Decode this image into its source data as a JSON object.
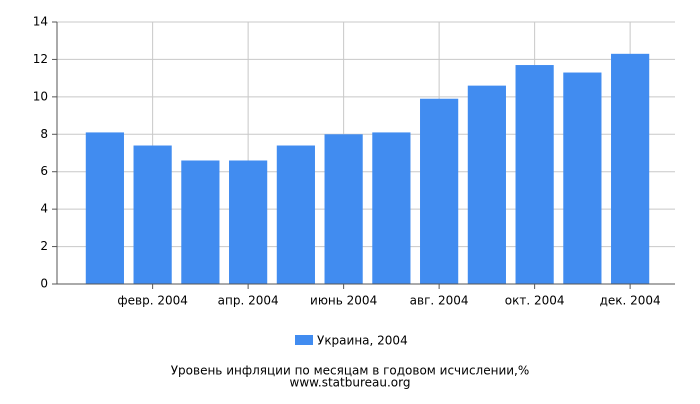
{
  "chart_data": {
    "type": "bar",
    "title": "Уровень инфляции по месяцам в годовом исчислении,%",
    "source": "www.statbureau.org",
    "categories": [
      null,
      "февр. 2004",
      null,
      "апр. 2004",
      null,
      "июнь 2004",
      null,
      "авг. 2004",
      null,
      "окт. 2004",
      null,
      "дек. 2004"
    ],
    "series": [
      {
        "name": "Украина, 2004",
        "color": "#418cf0",
        "values": [
          8.1,
          7.4,
          6.6,
          6.6,
          7.4,
          8.0,
          8.1,
          9.9,
          10.6,
          11.7,
          11.3,
          12.3
        ]
      }
    ],
    "ylim": [
      0,
      14
    ],
    "yticks": [
      0,
      2,
      4,
      6,
      8,
      10,
      12,
      14
    ],
    "grid": true
  }
}
